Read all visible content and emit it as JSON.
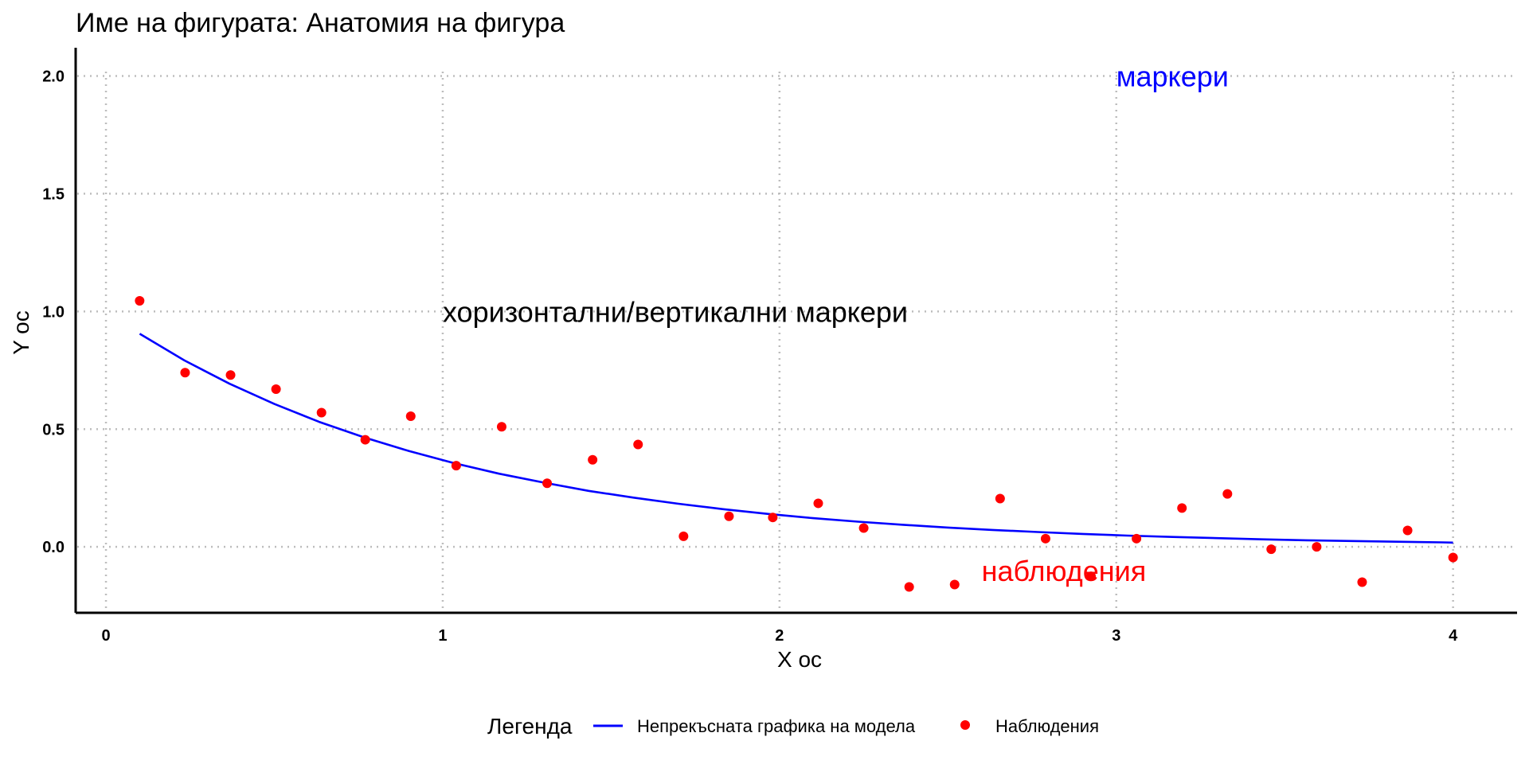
{
  "chart_data": {
    "type": "line",
    "title": "Име на фигурата: Анатомия на фигура",
    "xlabel": "X ос",
    "ylabel": "Y ос",
    "xlim": [
      -0.09,
      4.19
    ],
    "ylim": [
      -0.28,
      2.12
    ],
    "xticks": [
      0,
      1,
      2,
      3,
      4
    ],
    "xtick_labels": [
      "0",
      "1",
      "2",
      "3",
      "4"
    ],
    "yticks": [
      0.0,
      0.5,
      1.0,
      1.5,
      2.0
    ],
    "ytick_labels": [
      "0.0",
      "0.5",
      "1.0",
      "1.5",
      "2.0"
    ],
    "grid": true,
    "series": [
      {
        "name": "Непрекъсната графика на модела",
        "type": "line",
        "color": "#0000ff",
        "x": [
          0.1,
          0.233,
          0.367,
          0.5,
          0.633,
          0.767,
          0.9,
          1.033,
          1.167,
          1.3,
          1.433,
          1.567,
          1.7,
          1.833,
          1.967,
          2.1,
          2.233,
          2.367,
          2.5,
          2.633,
          2.767,
          2.9,
          3.033,
          3.167,
          3.3,
          3.433,
          3.567,
          3.7,
          3.833,
          3.967,
          4.0
        ],
        "y": [
          0.905,
          0.792,
          0.693,
          0.607,
          0.531,
          0.465,
          0.407,
          0.356,
          0.311,
          0.273,
          0.238,
          0.209,
          0.183,
          0.16,
          0.14,
          0.122,
          0.107,
          0.094,
          0.082,
          0.072,
          0.063,
          0.055,
          0.048,
          0.042,
          0.037,
          0.032,
          0.028,
          0.025,
          0.022,
          0.019,
          0.018
        ]
      },
      {
        "name": "Наблюдения",
        "type": "scatter",
        "color": "#ff0000",
        "x": [
          0.1,
          0.235,
          0.37,
          0.505,
          0.64,
          0.77,
          0.905,
          1.04,
          1.175,
          1.31,
          1.445,
          1.58,
          1.715,
          1.85,
          1.98,
          2.115,
          2.25,
          2.385,
          2.52,
          2.655,
          2.79,
          2.925,
          3.06,
          3.195,
          3.33,
          3.46,
          3.595,
          3.73,
          3.865,
          4.0
        ],
        "y": [
          1.045,
          0.74,
          0.73,
          0.67,
          0.57,
          0.455,
          0.555,
          0.345,
          0.51,
          0.27,
          0.37,
          0.435,
          0.045,
          0.13,
          0.125,
          0.185,
          0.08,
          -0.17,
          -0.16,
          0.205,
          0.035,
          -0.125,
          0.035,
          0.165,
          0.225,
          -0.01,
          0.0,
          -0.15,
          0.07,
          -0.045
        ]
      }
    ],
    "annotations": [
      {
        "text": "маркери",
        "x": 3.0,
        "y": 2.0,
        "color": "#0000ff"
      },
      {
        "text": "хоризонтални/вертикални маркери",
        "x": 1.0,
        "y": 1.0,
        "color": "#000000"
      },
      {
        "text": "наблюдения",
        "x": 2.6,
        "y": -0.1,
        "color": "#ff0000"
      }
    ],
    "legend": {
      "title": "Легенда",
      "placement": "bottom",
      "entries": [
        "Непрекъсната графика на модела",
        "Наблюдения"
      ]
    }
  }
}
